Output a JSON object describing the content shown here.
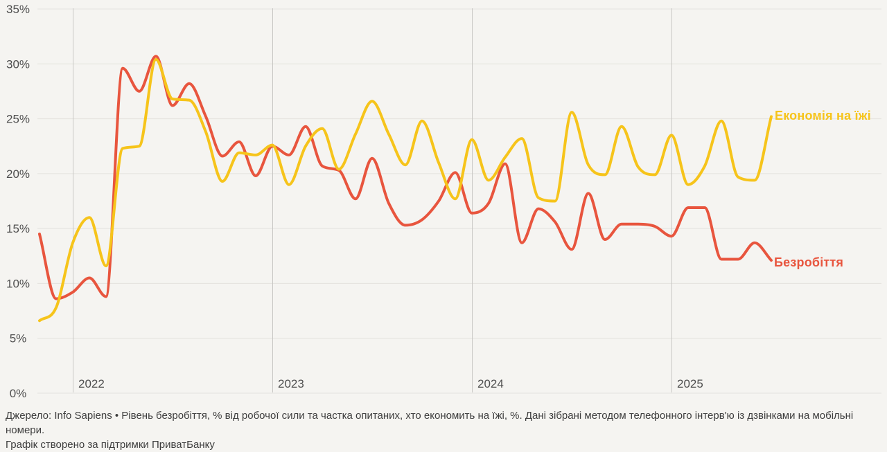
{
  "chart_data": {
    "type": "line",
    "title": "",
    "xlabel": "",
    "ylabel": "",
    "ylim": [
      0,
      35
    ],
    "grid": "horizontal-light + vertical-year-lines",
    "legend_position": "line-end-labels",
    "x": [
      "2021-11",
      "2021-12",
      "2022-01",
      "2022-02",
      "2022-03",
      "2022-04",
      "2022-05",
      "2022-06",
      "2022-07",
      "2022-08",
      "2022-09",
      "2022-10",
      "2022-11",
      "2022-12",
      "2023-01",
      "2023-02",
      "2023-03",
      "2023-04",
      "2023-05",
      "2023-06",
      "2023-07",
      "2023-08",
      "2023-09",
      "2023-10",
      "2023-11",
      "2023-12",
      "2024-01",
      "2024-02",
      "2024-03",
      "2024-04",
      "2024-05",
      "2024-06",
      "2024-07",
      "2024-08",
      "2024-09",
      "2024-10",
      "2024-11",
      "2024-12",
      "2025-01",
      "2025-02",
      "2025-03",
      "2025-04",
      "2025-05",
      "2025-06",
      "2025-07"
    ],
    "series": [
      {
        "name": "Безробіття",
        "color": "#e8553e",
        "values": [
          14.5,
          8.6,
          9.2,
          10.5,
          8.8,
          29.6,
          27.5,
          30.7,
          26.2,
          28.2,
          25.2,
          21.6,
          22.9,
          19.8,
          22.5,
          21.7,
          24.3,
          20.7,
          20.3,
          17.7,
          21.4,
          17.3,
          15.3,
          15.8,
          17.5,
          20.1,
          16.4,
          17.3,
          20.9,
          13.7,
          16.8,
          15.6,
          13.1,
          18.2,
          14.0,
          15.4,
          15.4,
          15.2,
          14.3,
          16.9,
          16.9,
          12.2,
          12.2,
          13.7,
          12.1
        ]
      },
      {
        "name": "Економія на їжі",
        "color": "#f6c41b",
        "values": [
          6.6,
          7.8,
          13.7,
          16.0,
          11.6,
          22.3,
          22.5,
          30.4,
          26.8,
          26.7,
          23.8,
          19.3,
          21.9,
          21.7,
          22.6,
          19.0,
          22.5,
          24.1,
          20.4,
          23.6,
          26.6,
          23.6,
          20.8,
          24.8,
          21.0,
          17.7,
          23.1,
          19.4,
          21.5,
          23.2,
          17.8,
          17.5,
          25.6,
          20.8,
          19.9,
          24.3,
          20.6,
          19.9,
          23.5,
          19.0,
          20.7,
          24.8,
          19.7,
          19.4,
          25.2
        ]
      }
    ],
    "y_ticks": [
      {
        "label": "0%",
        "value": 0
      },
      {
        "label": "5%",
        "value": 5
      },
      {
        "label": "10%",
        "value": 10
      },
      {
        "label": "15%",
        "value": 15
      },
      {
        "label": "20%",
        "value": 20
      },
      {
        "label": "25%",
        "value": 25
      },
      {
        "label": "30%",
        "value": 30
      },
      {
        "label": "35%",
        "value": 35
      }
    ],
    "x_ticks": [
      {
        "label": "2022",
        "month_index": 2
      },
      {
        "label": "2023",
        "month_index": 14
      },
      {
        "label": "2024",
        "month_index": 26
      },
      {
        "label": "2025",
        "month_index": 38
      }
    ]
  },
  "colors": {
    "background": "#f5f4f1",
    "grid_horizontal": "#e3e2de",
    "grid_vertical_year": "#c8c7c4",
    "tick_text": "#4f4f4f",
    "footer_text": "#3d3d3d"
  },
  "footer": {
    "source_line": "Джерело: Info Sapiens • Рівень безробіття, % від робочої сили та частка опитаних, хто економить на їжі, %. Дані зібрані методом телефонного інтерв'ю із дзвінками на мобільні номери.",
    "credit_line": "Графік створено за підтримки ПриватБанку"
  }
}
